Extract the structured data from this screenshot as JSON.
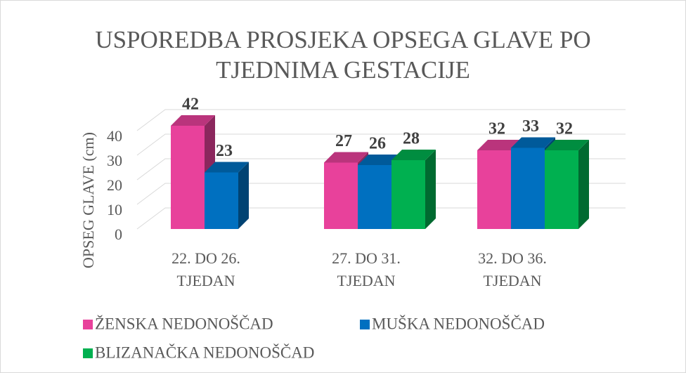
{
  "chart_data": {
    "type": "bar3d",
    "title": [
      "USPOREDBA PROSJEKA OPSEGA GLAVE PO",
      "TJEDNIMA GESTACIJE"
    ],
    "y_label": "OPSEG GLAVE (cm)",
    "categories": [
      [
        "22. DO 26.",
        "TJEDAN"
      ],
      [
        "27. DO 31.",
        "TJEDAN"
      ],
      [
        "32. DO 36.",
        "TJEDAN"
      ]
    ],
    "series": [
      {
        "name": "ŽENSKA NEDONOŠČAD",
        "color": "#e8419b",
        "values": [
          42,
          27,
          32
        ]
      },
      {
        "name": "MUŠKA NEDONOŠČAD",
        "color": "#0070c0",
        "values": [
          23,
          26,
          33
        ]
      },
      {
        "name": "BLIZANAČKA NEDONOŠČAD",
        "color": "#00b050",
        "values": [
          null,
          28,
          32
        ]
      }
    ],
    "ylim": [
      0,
      40
    ],
    "yticks": [
      0,
      10,
      20,
      30,
      40
    ],
    "grid": true,
    "legend": "bottom"
  }
}
